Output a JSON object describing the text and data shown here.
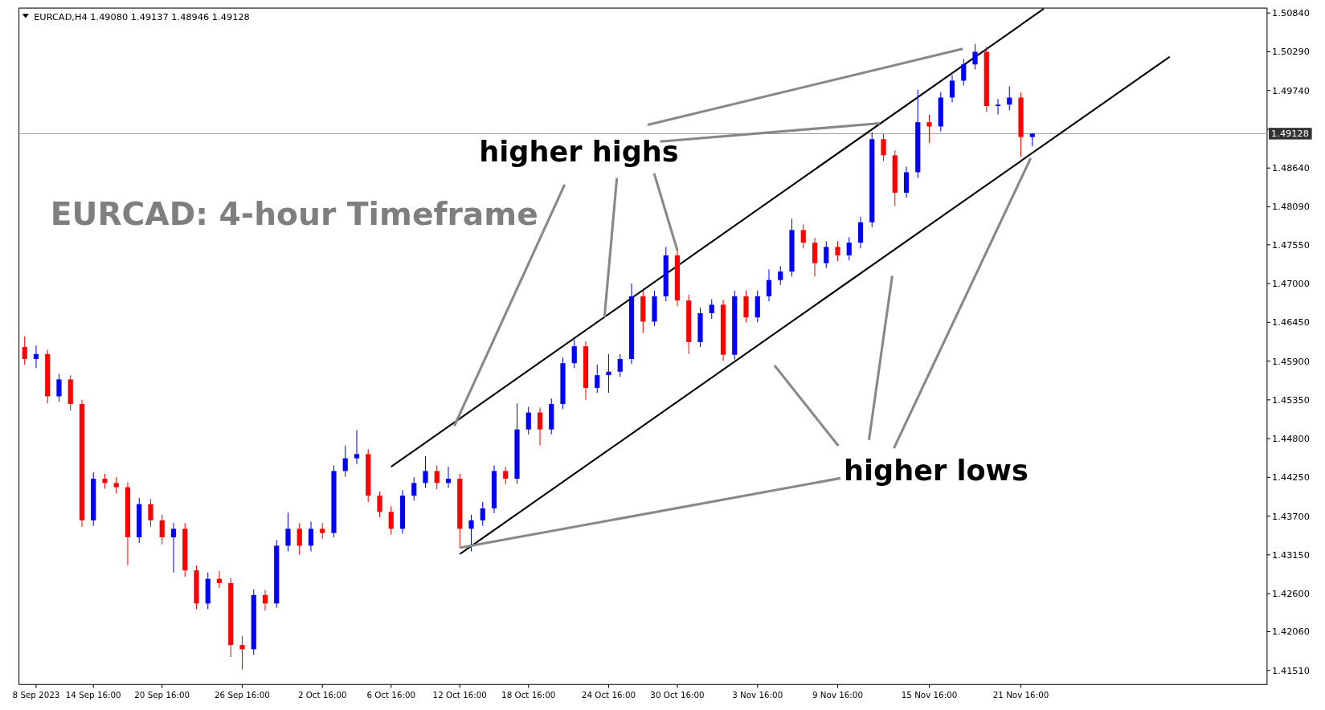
{
  "chart_data": {
    "type": "candlestick",
    "title": "EURCAD: 4-hour Timeframe",
    "subtitle": "EURCAD,H4  1.49080 1.49137 1.48946 1.49128",
    "annotations": [
      {
        "text": "higher highs",
        "x": "30 Oct 16:00",
        "y": 1.4747
      },
      {
        "text": "higher lows",
        "x": "12 Oct 16:00",
        "y": 1.4325
      }
    ],
    "categories": [
      null,
      "8 Sep 2023",
      null,
      null,
      null,
      null,
      "14 Sep 16:00",
      null,
      null,
      null,
      null,
      null,
      "20 Sep 16:00",
      null,
      null,
      null,
      null,
      null,
      null,
      "26 Sep 16:00",
      null,
      null,
      null,
      null,
      null,
      null,
      "2 Oct 16:00",
      null,
      null,
      null,
      null,
      null,
      "6 Oct 16:00",
      null,
      null,
      null,
      null,
      null,
      "12 Oct 16:00",
      null,
      null,
      null,
      null,
      null,
      "18 Oct 16:00",
      null,
      null,
      null,
      null,
      null,
      null,
      "24 Oct 16:00",
      null,
      null,
      null,
      null,
      null,
      "30 Oct 16:00",
      null,
      null,
      null,
      null,
      null,
      null,
      "3 Nov 16:00",
      null,
      null,
      null,
      null,
      null,
      null,
      "9 Nov 16:00",
      null,
      null,
      null,
      null,
      null,
      null,
      null,
      "15 Nov 16:00",
      null,
      null,
      null,
      null,
      null,
      null,
      null,
      "21 Nov 16:00",
      null,
      null,
      null,
      null,
      null,
      null,
      null,
      null,
      null,
      null,
      null,
      null,
      null,
      null,
      null,
      null,
      null,
      null,
      null,
      null,
      null
    ],
    "ylim": [
      1.4131,
      1.5091
    ],
    "yticks": [
      {
        "value": 1.5084,
        "label": "1.50840"
      },
      {
        "value": 1.5029,
        "label": "1.50290"
      },
      {
        "value": 1.4974,
        "label": "1.49740"
      },
      {
        "value": 1.4919,
        "label": null
      },
      {
        "value": 1.4864,
        "label": "1.48640"
      },
      {
        "value": 1.4809,
        "label": "1.48090"
      },
      {
        "value": 1.4755,
        "label": "1.47550"
      },
      {
        "value": 1.47,
        "label": "1.47000"
      },
      {
        "value": 1.4645,
        "label": "1.46450"
      },
      {
        "value": 1.459,
        "label": "1.45900"
      },
      {
        "value": 1.4535,
        "label": "1.45350"
      },
      {
        "value": 1.448,
        "label": "1.44800"
      },
      {
        "value": 1.4425,
        "label": "1.44250"
      },
      {
        "value": 1.437,
        "label": "1.43700"
      },
      {
        "value": 1.4315,
        "label": "1.43150"
      },
      {
        "value": 1.426,
        "label": "1.42600"
      },
      {
        "value": 1.4206,
        "label": "1.42060"
      },
      {
        "value": 1.4151,
        "label": "1.41510"
      }
    ],
    "ref_lines": [
      {
        "axis": "y",
        "value": 1.49128,
        "label": "1.49128",
        "color": "#a0a0a0"
      }
    ],
    "series": [
      {
        "colors": [
          "#ff0000",
          "#0000ff",
          "#ff0000",
          "#0000ff",
          "#ff0000",
          "#ff0000",
          "#0000ff",
          "#ff0000",
          "#ff0000",
          "#ff0000",
          "#0000ff",
          "#ff0000",
          "#ff0000",
          "#0000ff",
          "#ff0000",
          "#ff0000",
          "#0000ff",
          "#ff0000",
          "#ff0000",
          "#ff0000",
          "#0000ff",
          "#ff0000",
          "#0000ff",
          "#0000ff",
          "#ff0000",
          "#0000ff",
          "#ff0000",
          "#0000ff",
          "#0000ff",
          "#0000ff",
          "#ff0000",
          "#ff0000",
          "#ff0000",
          "#0000ff",
          "#0000ff",
          "#0000ff",
          "#ff0000",
          "#0000ff",
          "#ff0000",
          "#0000ff",
          "#0000ff",
          "#0000ff",
          "#ff0000",
          "#0000ff",
          "#0000ff",
          "#ff0000",
          "#0000ff",
          "#0000ff",
          "#0000ff",
          "#ff0000",
          "#0000ff",
          "#0000ff",
          "#0000ff",
          "#0000ff",
          "#ff0000",
          "#0000ff",
          "#0000ff",
          "#ff0000",
          "#ff0000",
          "#0000ff",
          "#0000ff",
          "#ff0000",
          "#0000ff",
          "#ff0000",
          "#0000ff",
          "#0000ff",
          "#0000ff",
          "#0000ff",
          "#ff0000",
          "#ff0000",
          "#0000ff",
          "#ff0000",
          "#0000ff",
          "#0000ff",
          "#0000ff",
          "#ff0000",
          "#ff0000",
          "#0000ff",
          "#0000ff",
          "#ff0000",
          "#0000ff",
          "#0000ff",
          "#0000ff",
          "#0000ff",
          "#ff0000",
          "#0000ff",
          "#0000ff",
          "#ff0000",
          "#0000ff",
          null,
          null,
          null,
          null,
          null,
          null,
          null,
          null,
          null,
          null,
          null,
          null,
          null,
          null,
          null,
          null,
          null,
          null,
          null,
          null
        ],
        "ohlc": [
          [
            1.461,
            1.4625,
            1.4585,
            1.4593
          ],
          [
            1.4593,
            1.4612,
            1.458,
            1.46
          ],
          [
            1.46,
            1.4606,
            1.453,
            1.454
          ],
          [
            1.454,
            1.4572,
            1.4532,
            1.4564
          ],
          [
            1.4564,
            1.457,
            1.452,
            1.4529
          ],
          [
            1.4529,
            1.4535,
            1.4355,
            1.4364
          ],
          [
            1.4364,
            1.4432,
            1.4356,
            1.4423
          ],
          [
            1.4423,
            1.443,
            1.4409,
            1.4417
          ],
          [
            1.4417,
            1.4425,
            1.4402,
            1.4411
          ],
          [
            1.4411,
            1.4418,
            1.43,
            1.434
          ],
          [
            1.434,
            1.4396,
            1.4332,
            1.4387
          ],
          [
            1.4387,
            1.4394,
            1.4355,
            1.4364
          ],
          [
            1.4364,
            1.4372,
            1.433,
            1.434
          ],
          [
            1.434,
            1.436,
            1.429,
            1.4352
          ],
          [
            1.4352,
            1.436,
            1.4284,
            1.4293
          ],
          [
            1.4293,
            1.43,
            1.4238,
            1.4246
          ],
          [
            1.4246,
            1.429,
            1.4238,
            1.4281
          ],
          [
            1.4281,
            1.4292,
            1.4268,
            1.4275
          ],
          [
            1.4275,
            1.4282,
            1.417,
            1.4187
          ],
          [
            1.4187,
            1.42,
            1.4152,
            1.4181
          ],
          [
            1.4181,
            1.4266,
            1.4173,
            1.4258
          ],
          [
            1.4258,
            1.4265,
            1.4236,
            1.4246
          ],
          [
            1.4246,
            1.4336,
            1.424,
            1.4328
          ],
          [
            1.4328,
            1.4375,
            1.432,
            1.4352
          ],
          [
            1.4352,
            1.436,
            1.4315,
            1.4328
          ],
          [
            1.4328,
            1.4362,
            1.432,
            1.4352
          ],
          [
            1.4352,
            1.436,
            1.4338,
            1.4346
          ],
          [
            1.4346,
            1.4442,
            1.434,
            1.4434
          ],
          [
            1.4434,
            1.447,
            1.4426,
            1.4452
          ],
          [
            1.4452,
            1.4492,
            1.4444,
            1.4458
          ],
          [
            1.4458,
            1.4465,
            1.439,
            1.4399
          ],
          [
            1.4399,
            1.4405,
            1.4368,
            1.4376
          ],
          [
            1.4376,
            1.4384,
            1.4344,
            1.4352
          ],
          [
            1.4352,
            1.4407,
            1.4345,
            1.4399
          ],
          [
            1.4399,
            1.4425,
            1.4392,
            1.4417
          ],
          [
            1.4417,
            1.4455,
            1.441,
            1.4434
          ],
          [
            1.4434,
            1.4442,
            1.4408,
            1.4417
          ],
          [
            1.4417,
            1.444,
            1.441,
            1.4423
          ],
          [
            1.4423,
            1.443,
            1.4325,
            1.4352
          ],
          [
            1.4352,
            1.4372,
            1.432,
            1.4364
          ],
          [
            1.4364,
            1.439,
            1.4356,
            1.4381
          ],
          [
            1.4381,
            1.4442,
            1.4374,
            1.4434
          ],
          [
            1.4434,
            1.444,
            1.4415,
            1.4423
          ],
          [
            1.4423,
            1.453,
            1.4416,
            1.4493
          ],
          [
            1.4493,
            1.4525,
            1.4486,
            1.4517
          ],
          [
            1.4517,
            1.4524,
            1.447,
            1.4493
          ],
          [
            1.4493,
            1.4537,
            1.4486,
            1.4529
          ],
          [
            1.4529,
            1.4595,
            1.4522,
            1.4587
          ],
          [
            1.4587,
            1.462,
            1.458,
            1.4611
          ],
          [
            1.4611,
            1.4618,
            1.4535,
            1.4552
          ],
          [
            1.4552,
            1.4585,
            1.4545,
            1.457
          ],
          [
            1.457,
            1.46,
            1.4545,
            1.4575
          ],
          [
            1.4575,
            1.46,
            1.4568,
            1.4593
          ],
          [
            1.4593,
            1.47,
            1.4586,
            1.4682
          ],
          [
            1.4682,
            1.469,
            1.463,
            1.4646
          ],
          [
            1.4646,
            1.469,
            1.464,
            1.4682
          ],
          [
            1.4682,
            1.4752,
            1.4675,
            1.474
          ],
          [
            1.474,
            1.4747,
            1.4668,
            1.4676
          ],
          [
            1.4676,
            1.4684,
            1.46,
            1.4617
          ],
          [
            1.4617,
            1.4666,
            1.461,
            1.4658
          ],
          [
            1.4658,
            1.4678,
            1.465,
            1.467
          ],
          [
            1.467,
            1.4677,
            1.459,
            1.4599
          ],
          [
            1.4599,
            1.469,
            1.4592,
            1.4682
          ],
          [
            1.4682,
            1.469,
            1.4645,
            1.4652
          ],
          [
            1.4652,
            1.469,
            1.4645,
            1.4682
          ],
          [
            1.4682,
            1.472,
            1.4675,
            1.4705
          ],
          [
            1.4705,
            1.4725,
            1.4698,
            1.4717
          ],
          [
            1.4717,
            1.4792,
            1.471,
            1.4776
          ],
          [
            1.4776,
            1.4784,
            1.475,
            1.4758
          ],
          [
            1.4758,
            1.4765,
            1.471,
            1.4729
          ],
          [
            1.4729,
            1.476,
            1.4722,
            1.4752
          ],
          [
            1.4752,
            1.476,
            1.4732,
            1.474
          ],
          [
            1.474,
            1.4766,
            1.4733,
            1.4758
          ],
          [
            1.4758,
            1.4795,
            1.475,
            1.4787
          ],
          [
            1.4787,
            1.4915,
            1.478,
            1.4905
          ],
          [
            1.4905,
            1.4912,
            1.4874,
            1.4882
          ],
          [
            1.4882,
            1.4889,
            1.481,
            1.4829
          ],
          [
            1.4829,
            1.4866,
            1.4822,
            1.4858
          ],
          [
            1.4858,
            1.4975,
            1.485,
            1.4929
          ],
          [
            1.4929,
            1.494,
            1.49,
            1.4923
          ],
          [
            1.4923,
            1.4972,
            1.4916,
            1.4964
          ],
          [
            1.4964,
            1.4996,
            1.4957,
            1.4988
          ],
          [
            1.4988,
            1.5019,
            1.4981,
            1.5011
          ],
          [
            1.5011,
            1.504,
            1.5004,
            1.5029
          ],
          [
            1.5029,
            1.5036,
            1.4944,
            1.4952
          ],
          [
            1.4952,
            1.4962,
            1.494,
            1.4954
          ],
          [
            1.4954,
            1.498,
            1.4946,
            1.4964
          ],
          [
            1.4964,
            1.4971,
            1.488,
            1.4908
          ],
          [
            1.4908,
            1.49137,
            1.48946,
            1.49128
          ],
          null,
          null,
          null,
          null,
          null,
          null,
          null,
          null,
          null,
          null,
          null,
          null,
          null,
          null,
          null,
          null,
          null,
          null,
          null,
          null
        ]
      },
      {
        "type": "line",
        "color": "#000000",
        "values": [
          null,
          null,
          null,
          null,
          null,
          null,
          null,
          null,
          null,
          null,
          null,
          null,
          null,
          null,
          null,
          null,
          null,
          null,
          null,
          null,
          null,
          null,
          null,
          null,
          null,
          null,
          null,
          null,
          null,
          null,
          null,
          null,
          1.444,
          null,
          null,
          null,
          null,
          null,
          null,
          null,
          null,
          null,
          null,
          null,
          null,
          null,
          null,
          null,
          null,
          null,
          null,
          null,
          null,
          null,
          null,
          null,
          null,
          null,
          null,
          null,
          null,
          null,
          null,
          null,
          null,
          null,
          null,
          null,
          null,
          null,
          null,
          null,
          null,
          null,
          null,
          null,
          null,
          null,
          null,
          null,
          null,
          null,
          null,
          null,
          null,
          null,
          null,
          null,
          null,
          1.509,
          null,
          null,
          null,
          null,
          null,
          null,
          null,
          null,
          null,
          null,
          null,
          null,
          null,
          null,
          null,
          null,
          null,
          null,
          null
        ]
      },
      {
        "type": "line",
        "color": "#000000",
        "values": [
          null,
          null,
          null,
          null,
          null,
          null,
          null,
          null,
          null,
          null,
          null,
          null,
          null,
          null,
          null,
          null,
          null,
          null,
          null,
          null,
          null,
          null,
          null,
          null,
          null,
          null,
          null,
          null,
          null,
          null,
          null,
          null,
          null,
          null,
          null,
          null,
          null,
          null,
          1.4316,
          null,
          null,
          null,
          null,
          null,
          null,
          null,
          null,
          null,
          null,
          null,
          null,
          null,
          null,
          null,
          null,
          null,
          null,
          null,
          null,
          null,
          null,
          null,
          null,
          null,
          null,
          null,
          null,
          null,
          null,
          null,
          null,
          null,
          null,
          null,
          null,
          null,
          null,
          null,
          null,
          null,
          null,
          null,
          null,
          null,
          null,
          null,
          null,
          null,
          null,
          null,
          null,
          null,
          null,
          null,
          null,
          null,
          null,
          null,
          null,
          null,
          1.5022,
          null,
          null,
          null,
          null,
          null,
          null,
          null,
          null
        ]
      }
    ]
  }
}
